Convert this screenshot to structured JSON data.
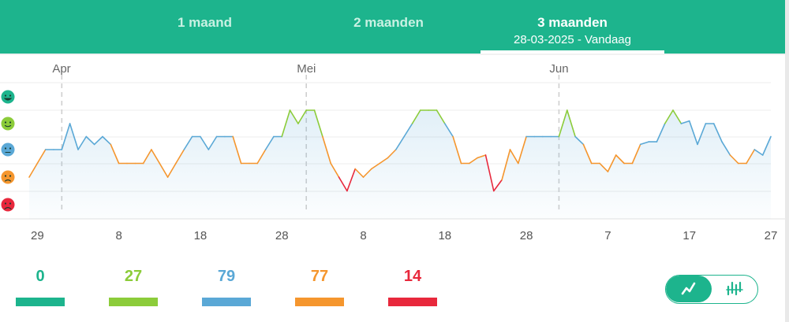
{
  "tabs": [
    {
      "label": "1 maand",
      "active": false
    },
    {
      "label": "2 maanden",
      "active": false
    },
    {
      "label": "3 maanden",
      "active": true,
      "subtitle": "28-03-2025 - Vandaag"
    }
  ],
  "chart_data": {
    "type": "line",
    "month_labels": [
      {
        "label": "Apr",
        "day_index": 4
      },
      {
        "label": "Mei",
        "day_index": 34
      },
      {
        "label": "Jun",
        "day_index": 65
      }
    ],
    "x_tick_labels": [
      {
        "label": "29",
        "day_index": 1
      },
      {
        "label": "8",
        "day_index": 11
      },
      {
        "label": "18",
        "day_index": 21
      },
      {
        "label": "28",
        "day_index": 31
      },
      {
        "label": "8",
        "day_index": 41
      },
      {
        "label": "18",
        "day_index": 51
      },
      {
        "label": "28",
        "day_index": 61
      },
      {
        "label": "7",
        "day_index": 71
      },
      {
        "label": "17",
        "day_index": 81
      },
      {
        "label": "27",
        "day_index": 91
      }
    ],
    "x_range": [
      0,
      91
    ],
    "mood_levels": [
      "very-happy",
      "happy",
      "neutral",
      "sad",
      "very-sad"
    ],
    "y_range": [
      0,
      4
    ],
    "grid": true,
    "mood_colors": {
      "very-happy": "#1db48d",
      "happy": "#8ccc3a",
      "neutral": "#5aa8d6",
      "sad": "#f5962e",
      "very-sad": "#e8283c"
    },
    "values": [
      1.0,
      1.5,
      2.0,
      2.0,
      2.0,
      3.0,
      2.0,
      2.5,
      2.2,
      2.5,
      2.2,
      1.5,
      1.5,
      1.5,
      1.5,
      2.0,
      1.5,
      1.0,
      1.5,
      2.0,
      2.5,
      2.5,
      2.0,
      2.5,
      2.5,
      2.5,
      1.5,
      1.5,
      1.5,
      2.0,
      2.5,
      2.5,
      3.5,
      3.0,
      3.5,
      3.5,
      2.5,
      1.5,
      1.0,
      0.5,
      1.3,
      1.0,
      1.3,
      1.5,
      1.7,
      2.0,
      2.5,
      3.0,
      3.5,
      3.5,
      3.5,
      3.0,
      2.5,
      1.5,
      1.5,
      1.7,
      1.8,
      0.5,
      0.9,
      2.0,
      1.5,
      2.5,
      2.5,
      2.5,
      2.5,
      2.5,
      3.5,
      2.5,
      2.2,
      1.5,
      1.5,
      1.2,
      1.8,
      1.5,
      1.5,
      2.2,
      2.3,
      2.3,
      3.0,
      3.5,
      3.0,
      3.1,
      2.2,
      3.0,
      3.0,
      2.3,
      1.8,
      1.5,
      1.5,
      2.0,
      1.8,
      2.5
    ]
  },
  "stats": [
    {
      "value": "0",
      "color": "#1db48d"
    },
    {
      "value": "27",
      "color": "#8ccc3a"
    },
    {
      "value": "79",
      "color": "#5aa8d6"
    },
    {
      "value": "77",
      "color": "#f5962e"
    },
    {
      "value": "14",
      "color": "#e8283c"
    }
  ],
  "view_toggle": {
    "options": [
      "line-chart-icon",
      "bar-chart-icon"
    ],
    "selected": "line-chart-icon"
  }
}
